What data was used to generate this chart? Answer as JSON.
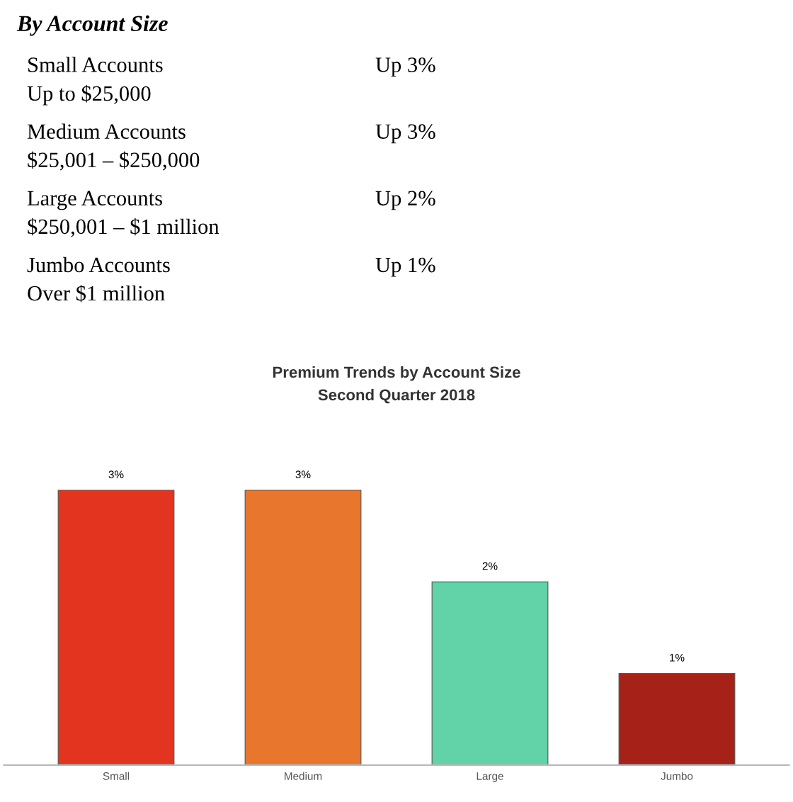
{
  "chart_data": [
    {
      "type": "other",
      "title": "By Account Size",
      "annotations": [
        "Small Accounts",
        "Up to $25,000",
        "Up 3%",
        "Medium Accounts",
        "$25,001 – $250,000",
        "Up 3%",
        "Large Accounts",
        "$250,001 – $1 million",
        "Up 2%",
        "Jumbo Accounts",
        "Over $1 million",
        "Up 1%"
      ]
    },
    {
      "type": "bar",
      "title": "Premium Trends by Account Size",
      "subtitle": "Second Quarter 2018",
      "categories": [
        "Small",
        "Medium",
        "Large",
        "Jumbo"
      ],
      "values": [
        3,
        3,
        2,
        1
      ],
      "colors": [
        "#e3341f",
        "#e8762c",
        "#62d2a8",
        "#a62218"
      ],
      "value_labels": [
        "3%",
        "3%",
        "2%",
        "1%"
      ],
      "grid": false,
      "legend": false
    }
  ]
}
